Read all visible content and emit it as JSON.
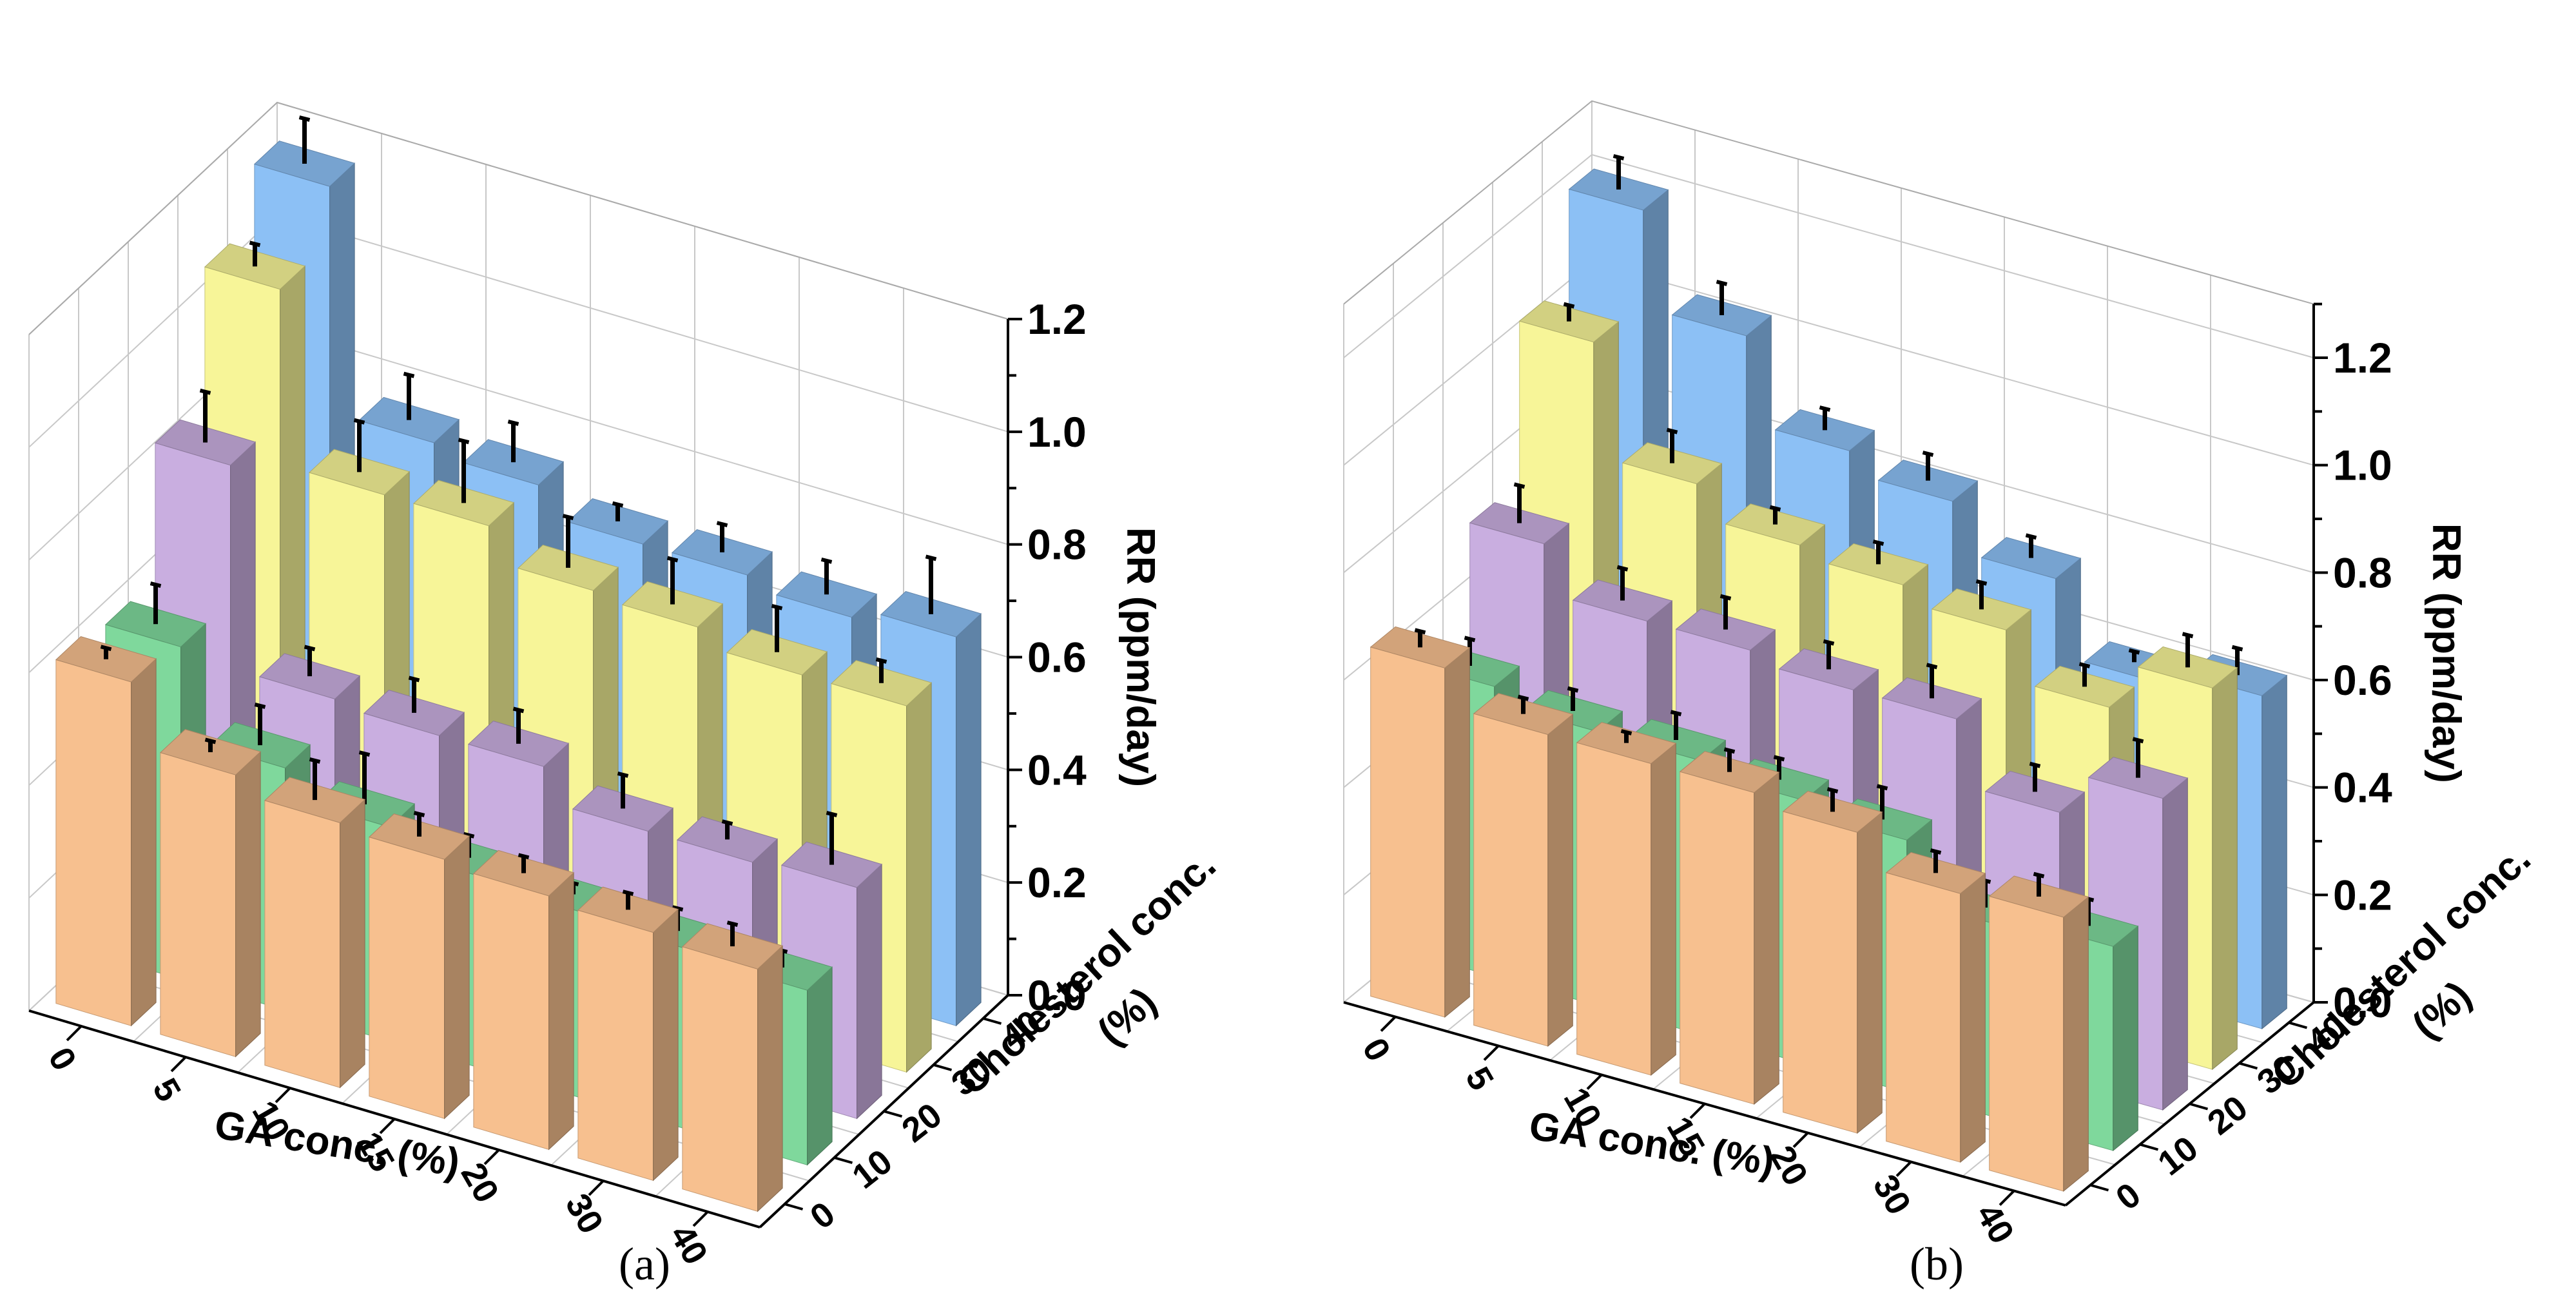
{
  "chart_data": [
    {
      "type": "bar3d",
      "panel_label": "(a)",
      "xlabel": "GA conc. (%)",
      "zlabel_lines": [
        "Cholesterol conc.",
        "(%)"
      ],
      "ylabel": "RR (ppm/day)",
      "ylim": [
        0,
        1.2
      ],
      "yticks": [
        "0.0",
        "0.2",
        "0.4",
        "0.6",
        "0.8",
        "1.0",
        "1.2"
      ],
      "categories": [
        "0",
        "5",
        "10",
        "15",
        "20",
        "30",
        "40"
      ],
      "depth_categories": [
        "0",
        "10",
        "20",
        "30",
        "40"
      ],
      "series": [
        {
          "name": "0",
          "color": "#f7c08f",
          "values": [
            0.61,
            0.5,
            0.47,
            0.46,
            0.45,
            0.44,
            0.43
          ],
          "errors": [
            0.02,
            0.02,
            0.07,
            0.04,
            0.03,
            0.03,
            0.04
          ]
        },
        {
          "name": "10",
          "color": "#7fd89c",
          "values": [
            0.59,
            0.43,
            0.38,
            0.34,
            0.33,
            0.32,
            0.31
          ],
          "errors": [
            0.07,
            0.07,
            0.09,
            0.04,
            0.02,
            0.04,
            0.03
          ]
        },
        {
          "name": "20",
          "color": "#c9aee0",
          "values": [
            0.83,
            0.47,
            0.46,
            0.46,
            0.4,
            0.4,
            0.41
          ],
          "errors": [
            0.09,
            0.05,
            0.06,
            0.06,
            0.06,
            0.03,
            0.09
          ]
        },
        {
          "name": "30",
          "color": "#f7f598",
          "values": [
            1.06,
            0.75,
            0.75,
            0.69,
            0.68,
            0.65,
            0.65
          ],
          "errors": [
            0.04,
            0.09,
            0.11,
            0.09,
            0.08,
            0.08,
            0.04
          ]
        },
        {
          "name": "40",
          "color": "#8cc0f5",
          "values": [
            1.16,
            0.76,
            0.74,
            0.69,
            0.69,
            0.67,
            0.69
          ],
          "errors": [
            0.08,
            0.08,
            0.07,
            0.03,
            0.05,
            0.06,
            0.1
          ]
        }
      ]
    },
    {
      "type": "bar3d",
      "panel_label": "(b)",
      "xlabel": "GA conc. (%)",
      "zlabel_lines": [
        "Cholesterol conc.",
        "(%)"
      ],
      "ylabel": "RR (ppm/day)",
      "ylim": [
        0,
        1.3
      ],
      "yticks": [
        "0.0",
        "0.2",
        "0.4",
        "0.6",
        "0.8",
        "1.0",
        "1.2"
      ],
      "categories": [
        "0",
        "5",
        "10",
        "15",
        "20",
        "30",
        "40"
      ],
      "depth_categories": [
        "0",
        "10",
        "20",
        "30",
        "40"
      ],
      "series": [
        {
          "name": "0",
          "color": "#f7c08f",
          "values": [
            0.65,
            0.58,
            0.58,
            0.58,
            0.56,
            0.5,
            0.51
          ],
          "errors": [
            0.03,
            0.03,
            0.02,
            0.04,
            0.04,
            0.04,
            0.04
          ]
        },
        {
          "name": "10",
          "color": "#7fd89c",
          "values": [
            0.54,
            0.51,
            0.51,
            0.49,
            0.47,
            0.36,
            0.38
          ],
          "errors": [
            0.05,
            0.04,
            0.05,
            0.04,
            0.06,
            0.05,
            0.05
          ]
        },
        {
          "name": "20",
          "color": "#c9aee0",
          "values": [
            0.73,
            0.64,
            0.64,
            0.62,
            0.62,
            0.5,
            0.58
          ],
          "errors": [
            0.07,
            0.06,
            0.06,
            0.05,
            0.06,
            0.05,
            0.07
          ]
        },
        {
          "name": "30",
          "color": "#f7f598",
          "values": [
            1.03,
            0.82,
            0.76,
            0.74,
            0.71,
            0.62,
            0.71
          ],
          "errors": [
            0.03,
            0.06,
            0.03,
            0.04,
            0.05,
            0.04,
            0.06
          ]
        },
        {
          "name": "40",
          "color": "#8cc0f5",
          "values": [
            1.2,
            1.02,
            0.86,
            0.82,
            0.73,
            0.59,
            0.62
          ],
          "errors": [
            0.06,
            0.06,
            0.04,
            0.05,
            0.04,
            0.02,
            0.05
          ]
        }
      ]
    }
  ]
}
